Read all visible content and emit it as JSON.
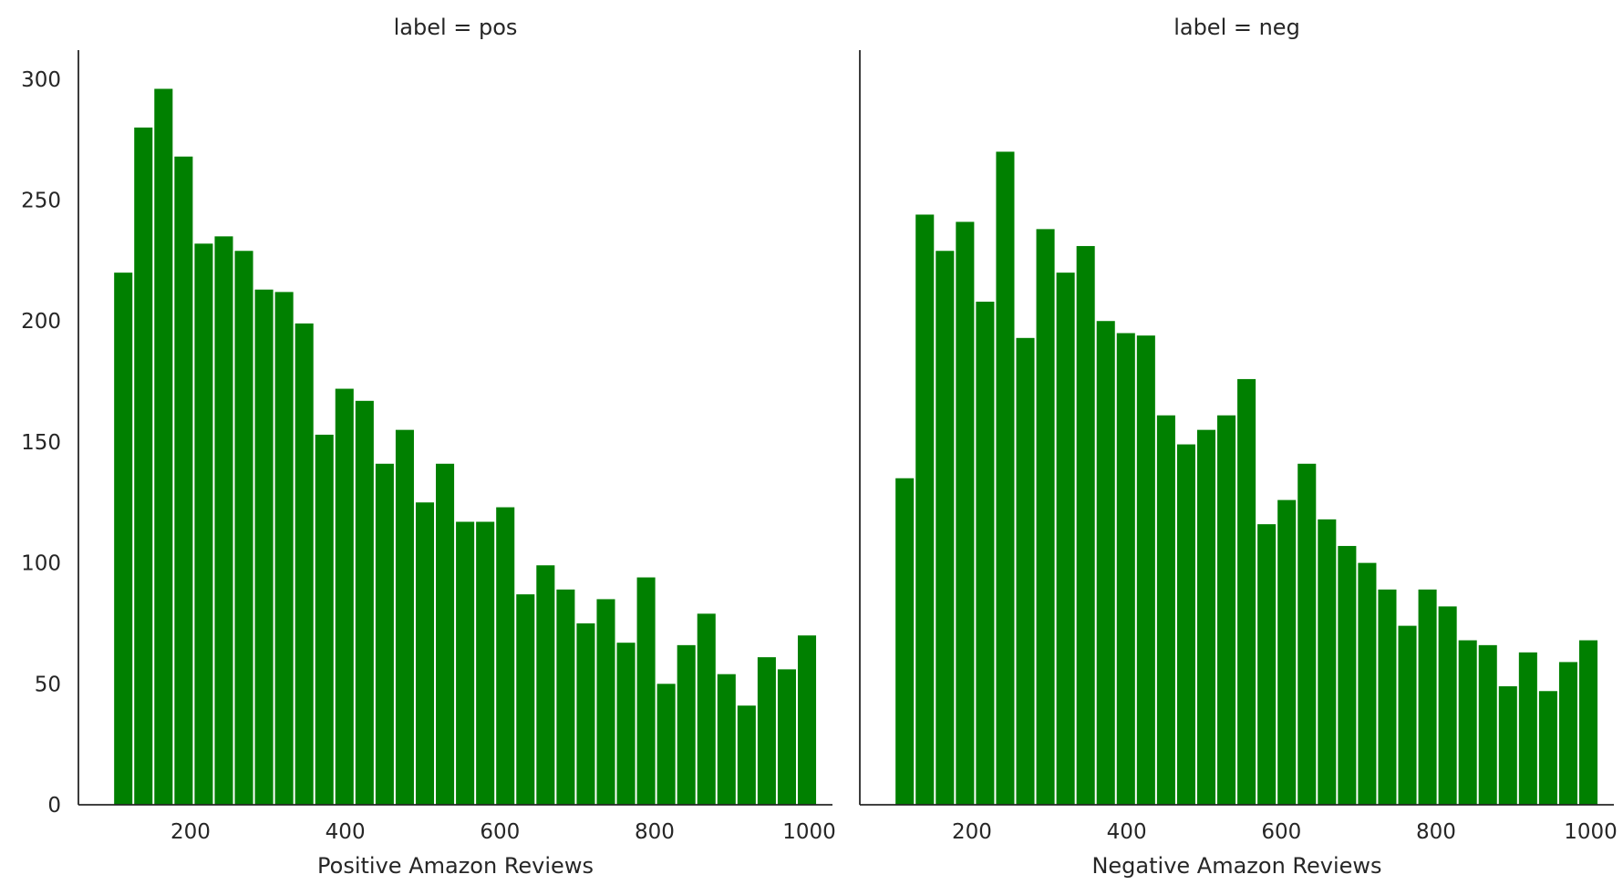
{
  "chart_data": [
    {
      "type": "bar",
      "title": "label = pos",
      "xlabel": "Positive Amazon Reviews",
      "ylabel": "",
      "color": "#008000",
      "xlim": [
        55,
        1030
      ],
      "ylim": [
        0,
        312
      ],
      "xticks": [
        200,
        400,
        600,
        800,
        1000
      ],
      "yticks": [
        0,
        50,
        100,
        150,
        200,
        250,
        300
      ],
      "grid": false,
      "bin_start": 100,
      "bin_width": 26,
      "values": [
        220,
        280,
        296,
        268,
        232,
        235,
        229,
        213,
        212,
        199,
        153,
        172,
        167,
        141,
        155,
        125,
        141,
        117,
        117,
        123,
        87,
        99,
        89,
        75,
        85,
        67,
        94,
        50,
        66,
        79,
        54,
        41,
        61,
        56,
        70
      ]
    },
    {
      "type": "bar",
      "title": "label = neg",
      "xlabel": "Negative Amazon Reviews",
      "ylabel": "",
      "color": "#008000",
      "xlim": [
        55,
        1030
      ],
      "ylim": [
        0,
        312
      ],
      "xticks": [
        200,
        400,
        600,
        800,
        1000
      ],
      "yticks": [
        0,
        50,
        100,
        150,
        200,
        250,
        300
      ],
      "grid": false,
      "bin_start": 100,
      "bin_width": 26,
      "values": [
        135,
        244,
        229,
        241,
        208,
        270,
        193,
        238,
        220,
        231,
        200,
        195,
        194,
        161,
        149,
        155,
        161,
        176,
        116,
        126,
        141,
        118,
        107,
        100,
        89,
        74,
        89,
        82,
        68,
        66,
        49,
        63,
        47,
        59,
        68
      ]
    }
  ]
}
